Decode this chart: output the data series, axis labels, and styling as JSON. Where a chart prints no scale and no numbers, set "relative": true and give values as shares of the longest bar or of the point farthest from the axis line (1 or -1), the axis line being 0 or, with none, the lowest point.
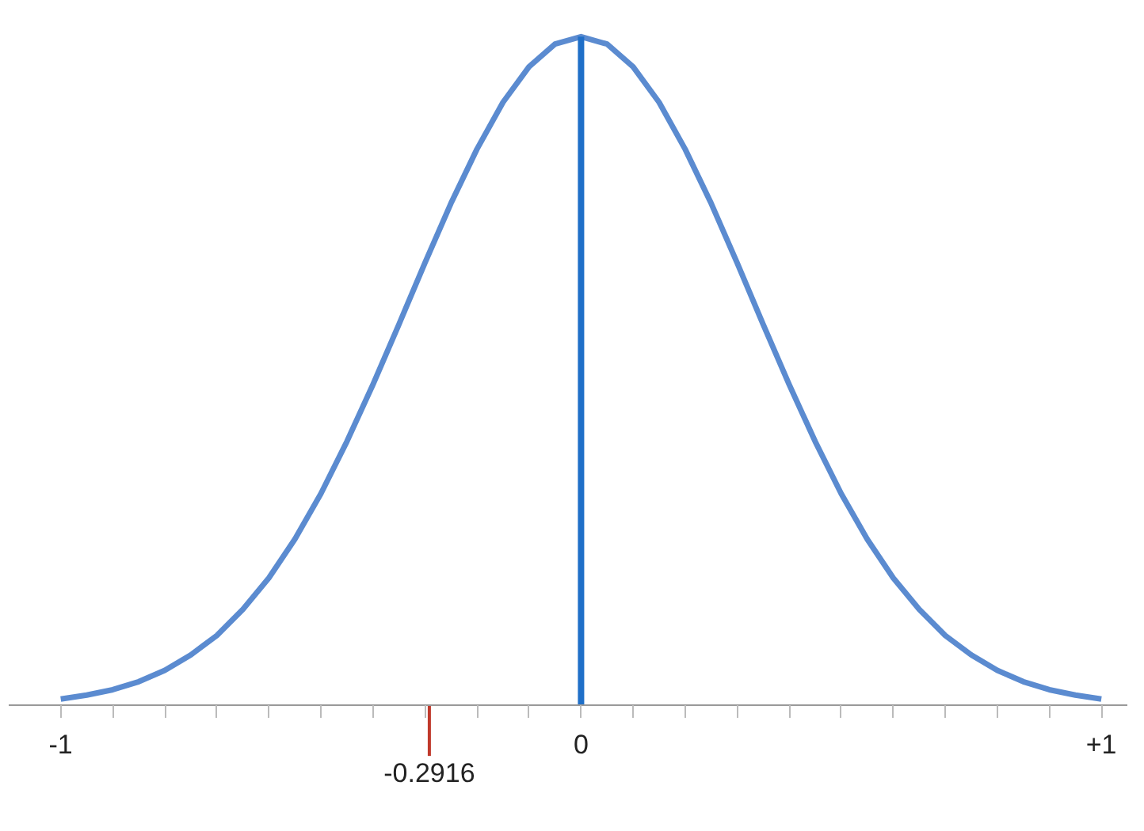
{
  "chart_data": {
    "type": "line",
    "relative": true,
    "x": [
      -1,
      -0.95,
      -0.9,
      -0.85,
      -0.8,
      -0.75,
      -0.7,
      -0.65,
      -0.6,
      -0.55,
      -0.5,
      -0.45,
      -0.4,
      -0.35,
      -0.3,
      -0.25,
      -0.2,
      -0.15,
      -0.1,
      -0.05,
      0,
      0.05,
      0.1,
      0.15,
      0.2,
      0.25,
      0.3,
      0.35,
      0.4,
      0.45,
      0.5,
      0.55,
      0.6,
      0.65,
      0.7,
      0.75,
      0.8,
      0.85,
      0.9,
      0.95,
      1
    ],
    "series": [
      {
        "color": "#5b8bd0",
        "values": [
          0.01,
          0.016,
          0.024,
          0.036,
          0.053,
          0.076,
          0.105,
          0.144,
          0.191,
          0.249,
          0.317,
          0.395,
          0.48,
          0.57,
          0.662,
          0.751,
          0.832,
          0.902,
          0.955,
          0.989,
          1,
          0.989,
          0.955,
          0.902,
          0.832,
          0.751,
          0.662,
          0.57,
          0.48,
          0.395,
          0.317,
          0.249,
          0.191,
          0.144,
          0.105,
          0.076,
          0.053,
          0.036,
          0.024,
          0.016,
          0.01
        ]
      }
    ],
    "xlim": [
      -1.1,
      1.05
    ],
    "xticks": [
      -1,
      {
        "value": -0.9,
        "label": null
      },
      {
        "value": -0.8,
        "label": null
      },
      {
        "value": -0.7,
        "label": null
      },
      {
        "value": -0.6,
        "label": null
      },
      {
        "value": -0.5,
        "label": null
      },
      {
        "value": -0.4,
        "label": null
      },
      {
        "value": -0.3,
        "label": null
      },
      {
        "value": -0.2,
        "label": null
      },
      {
        "value": -0.1,
        "label": null
      },
      0,
      {
        "value": 0.1,
        "label": null
      },
      {
        "value": 0.2,
        "label": null
      },
      {
        "value": 0.3,
        "label": null
      },
      {
        "value": 0.4,
        "label": null
      },
      {
        "value": 0.5,
        "label": null
      },
      {
        "value": 0.6,
        "label": null
      },
      {
        "value": 0.7,
        "label": null
      },
      {
        "value": 0.8,
        "label": null
      },
      {
        "value": 0.9,
        "label": null
      },
      {
        "value": 1,
        "label": "+1"
      }
    ],
    "ref_lines": [
      {
        "axis": "x",
        "value": 0,
        "label": null,
        "color": "#1f6fc8"
      },
      {
        "axis": "x",
        "value": -0.2916,
        "label": "-0.2916",
        "color": "#c0392b"
      }
    ],
    "grid": false,
    "marker": "none",
    "line_style": "solid"
  }
}
